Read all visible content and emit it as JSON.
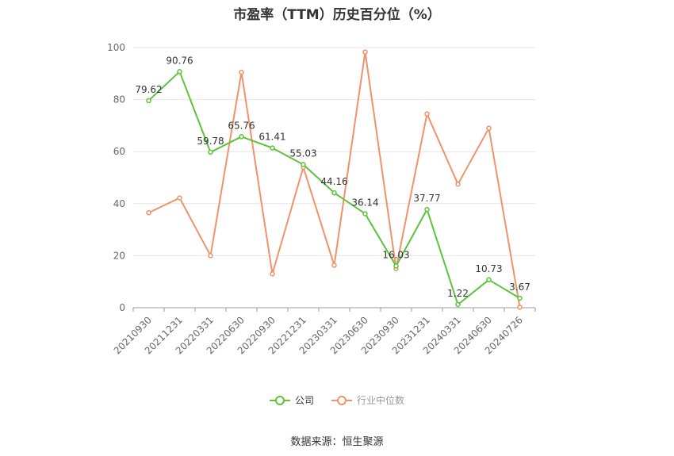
{
  "chart_data": {
    "type": "line",
    "title": "市盈率（TTM）历史百分位（%）",
    "categories": [
      "20210930",
      "20211231",
      "20220331",
      "20220630",
      "20220930",
      "20221231",
      "20230331",
      "20230630",
      "20230930",
      "20231231",
      "20240331",
      "20240630",
      "20240726"
    ],
    "series": [
      {
        "name": "公司",
        "color": "#5cc43a",
        "values": [
          79.62,
          90.76,
          59.78,
          65.76,
          61.41,
          55.03,
          44.16,
          36.14,
          16.03,
          37.77,
          1.22,
          10.73,
          3.67
        ],
        "labels": [
          "79.62",
          "90.76",
          "59.78",
          "65.76",
          "61.41",
          "55.03",
          "44.16",
          "36.14",
          "16.03",
          "37.77",
          "1.22",
          "10.73",
          "3.67"
        ]
      },
      {
        "name": "行业中位数",
        "color": "#f0926a",
        "values": [
          36.5,
          42.2,
          20.0,
          90.5,
          13.0,
          54.0,
          16.3,
          98.3,
          15.0,
          74.5,
          47.5,
          69.0,
          0.2
        ]
      }
    ],
    "ylim": [
      0,
      100
    ],
    "yticks": [
      0,
      20,
      40,
      60,
      80,
      100
    ],
    "grid": true,
    "legend": "bottom"
  },
  "footer": {
    "source": "数据来源：恒生聚源"
  }
}
